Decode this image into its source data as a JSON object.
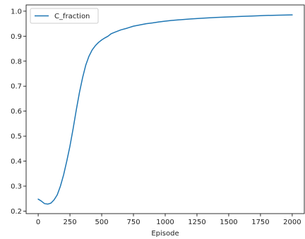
{
  "chart_data": {
    "type": "line",
    "title": "",
    "xlabel": "Episode",
    "ylabel": "",
    "xlim": [
      -95,
      2095
    ],
    "ylim": [
      0.19,
      1.025
    ],
    "x_ticks": [
      0,
      250,
      500,
      750,
      1000,
      1250,
      1500,
      1750,
      2000
    ],
    "x_tick_labels": [
      "0",
      "250",
      "500",
      "750",
      "1000",
      "1250",
      "1500",
      "1750",
      "2000"
    ],
    "y_ticks": [
      0.2,
      0.3,
      0.4,
      0.5,
      0.6,
      0.7,
      0.8,
      0.9,
      1.0
    ],
    "y_tick_labels": [
      "0.2",
      "0.3",
      "0.4",
      "0.5",
      "0.6",
      "0.7",
      "0.8",
      "0.9",
      "1.0"
    ],
    "grid": false,
    "legend_position": "top-left",
    "series": [
      {
        "name": "C_fraction",
        "color": "#1f77b4",
        "x": [
          0,
          25,
          50,
          75,
          100,
          125,
          150,
          175,
          200,
          225,
          250,
          275,
          300,
          325,
          350,
          375,
          400,
          425,
          450,
          475,
          500,
          525,
          550,
          575,
          600,
          650,
          700,
          750,
          800,
          850,
          900,
          950,
          1000,
          1050,
          1100,
          1200,
          1300,
          1400,
          1500,
          1600,
          1700,
          1800,
          1900,
          2000
        ],
        "values": [
          0.248,
          0.24,
          0.23,
          0.228,
          0.232,
          0.245,
          0.265,
          0.3,
          0.345,
          0.4,
          0.46,
          0.53,
          0.605,
          0.675,
          0.735,
          0.785,
          0.82,
          0.845,
          0.862,
          0.875,
          0.885,
          0.893,
          0.9,
          0.91,
          0.915,
          0.925,
          0.932,
          0.94,
          0.945,
          0.95,
          0.953,
          0.957,
          0.96,
          0.963,
          0.965,
          0.969,
          0.972,
          0.975,
          0.977,
          0.979,
          0.981,
          0.983,
          0.984,
          0.985
        ]
      }
    ]
  }
}
